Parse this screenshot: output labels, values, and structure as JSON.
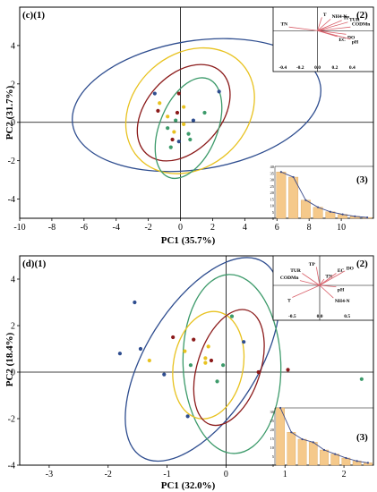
{
  "chart_data": [
    {
      "type": "scatter",
      "panel_label": "(c)(1)",
      "xlabel": "PC1 (35.7%)",
      "ylabel": "PC2 (31.7%)",
      "xlim": [
        -10,
        12
      ],
      "ylim": [
        -5,
        6
      ],
      "xticks": [
        "-10",
        "-8",
        "-6",
        "-4",
        "-2",
        "0",
        "2",
        "4",
        "6",
        "8",
        "10"
      ],
      "yticks": [
        "-4",
        "-2",
        "0",
        "2",
        "4"
      ],
      "colors": {
        "blue": "#2e4d8f",
        "yellow": "#e8c21f",
        "red": "#8b1a1a",
        "green": "#3c9a6a"
      },
      "ellipses": [
        {
          "color": "blue",
          "cx": 1.0,
          "cy": 0.9,
          "rx": 7.8,
          "ry": 3.35,
          "angle": -9
        },
        {
          "color": "yellow",
          "cx": 0.6,
          "cy": 0.6,
          "rx": 4.35,
          "ry": 2.95,
          "angle": -42
        },
        {
          "color": "red",
          "cx": 0.2,
          "cy": 0.5,
          "rx": 3.45,
          "ry": 1.95,
          "angle": -48
        },
        {
          "color": "green",
          "cx": 0.5,
          "cy": -0.3,
          "rx": 3.3,
          "ry": 1.5,
          "angle": -68
        }
      ],
      "points": [
        {
          "x": 2.4,
          "y": 1.6,
          "color": "blue"
        },
        {
          "x": -1.6,
          "y": 1.5,
          "color": "blue"
        },
        {
          "x": 0.8,
          "y": 0.1,
          "color": "blue"
        },
        {
          "x": -0.1,
          "y": -1.0,
          "color": "blue"
        },
        {
          "x": -1.3,
          "y": 1.0,
          "color": "yellow"
        },
        {
          "x": -0.8,
          "y": 0.3,
          "color": "yellow"
        },
        {
          "x": 0.2,
          "y": 0.8,
          "color": "yellow"
        },
        {
          "x": -0.4,
          "y": -0.5,
          "color": "yellow"
        },
        {
          "x": 0.2,
          "y": -0.1,
          "color": "yellow"
        },
        {
          "x": -0.1,
          "y": 1.5,
          "color": "red"
        },
        {
          "x": -1.4,
          "y": 0.6,
          "color": "red"
        },
        {
          "x": -0.2,
          "y": 0.5,
          "color": "red"
        },
        {
          "x": -0.5,
          "y": -0.9,
          "color": "red"
        },
        {
          "x": -0.3,
          "y": 0.1,
          "color": "green"
        },
        {
          "x": 0.5,
          "y": -0.6,
          "color": "green"
        },
        {
          "x": 0.6,
          "y": -0.9,
          "color": "green"
        },
        {
          "x": -0.6,
          "y": -1.3,
          "color": "green"
        },
        {
          "x": -0.8,
          "y": -0.3,
          "color": "green"
        },
        {
          "x": 1.5,
          "y": 0.5,
          "color": "green"
        }
      ],
      "inset_loadings": {
        "label": "(2)",
        "xticks": [
          "-0.4",
          "-0.2",
          "0.0",
          "0.2",
          "0.4"
        ],
        "xlim": [
          -0.45,
          0.5
        ],
        "ylim": [
          -0.5,
          0.3
        ],
        "vectors": [
          {
            "name": "TN",
            "x": -0.33,
            "y": 0.06
          },
          {
            "name": "T",
            "x": 0.05,
            "y": 0.22
          },
          {
            "name": "NH4-N",
            "x": 0.15,
            "y": 0.19
          },
          {
            "name": "TP",
            "x": 0.28,
            "y": 0.17
          },
          {
            "name": "TUR",
            "x": 0.35,
            "y": 0.14
          },
          {
            "name": "CODMn",
            "x": 0.38,
            "y": 0.06
          },
          {
            "name": "DO",
            "x": 0.33,
            "y": -0.06
          },
          {
            "name": "EC",
            "x": 0.23,
            "y": -0.1
          },
          {
            "name": "pH",
            "x": 0.38,
            "y": -0.14
          }
        ]
      },
      "inset_scree": {
        "label": "(3)",
        "yticks": [
          "0",
          "5",
          "10",
          "15",
          "20",
          "25",
          "30",
          "35",
          "40"
        ],
        "ylim": [
          0,
          40
        ],
        "values": [
          35.7,
          31.7,
          14,
          8.5,
          5,
          3,
          1.5,
          0.6
        ]
      }
    },
    {
      "type": "scatter",
      "panel_label": "(d)(1)",
      "xlabel": "PC1 (32.0%)",
      "ylabel": "PC2 (18.4%)",
      "xlim": [
        -3.5,
        2.5
      ],
      "ylim": [
        -4,
        5
      ],
      "xticks": [
        "-3",
        "-2",
        "-1",
        "0",
        "1",
        "2"
      ],
      "yticks": [
        "-4",
        "-2",
        "0",
        "2",
        "4"
      ],
      "colors": {
        "blue": "#2e4d8f",
        "yellow": "#e8c21f",
        "red": "#8b1a1a",
        "green": "#3c9a6a"
      },
      "ellipses": [
        {
          "color": "blue",
          "cx": -0.4,
          "cy": 0.55,
          "rx": 1.95,
          "ry": 2.4,
          "angle": -58
        },
        {
          "color": "green",
          "cx": 0.1,
          "cy": 0.35,
          "rx": 1.52,
          "ry": 2.1,
          "angle": 88
        },
        {
          "color": "yellow",
          "cx": -0.3,
          "cy": 0.3,
          "rx": 0.92,
          "ry": 1.5,
          "angle": -80
        },
        {
          "color": "red",
          "cx": 0.05,
          "cy": 0.2,
          "rx": 1.02,
          "ry": 1.35,
          "angle": -72
        }
      ],
      "points": [
        {
          "x": -1.55,
          "y": 3.0,
          "color": "blue"
        },
        {
          "x": -1.45,
          "y": 1.0,
          "color": "blue"
        },
        {
          "x": -1.8,
          "y": 0.8,
          "color": "blue"
        },
        {
          "x": -1.05,
          "y": -0.1,
          "color": "blue"
        },
        {
          "x": -0.65,
          "y": -1.9,
          "color": "blue"
        },
        {
          "x": 0.3,
          "y": 1.3,
          "color": "blue"
        },
        {
          "x": -1.3,
          "y": 0.5,
          "color": "yellow"
        },
        {
          "x": -0.7,
          "y": 0.9,
          "color": "yellow"
        },
        {
          "x": -0.3,
          "y": 1.1,
          "color": "yellow"
        },
        {
          "x": -0.35,
          "y": 0.6,
          "color": "yellow"
        },
        {
          "x": -0.35,
          "y": 0.4,
          "color": "yellow"
        },
        {
          "x": -0.9,
          "y": 1.5,
          "color": "red"
        },
        {
          "x": -0.55,
          "y": 1.4,
          "color": "red"
        },
        {
          "x": -0.25,
          "y": 0.5,
          "color": "red"
        },
        {
          "x": 1.05,
          "y": 0.1,
          "color": "red"
        },
        {
          "x": 0.55,
          "y": 0.0,
          "color": "red"
        },
        {
          "x": 0.1,
          "y": 2.4,
          "color": "green"
        },
        {
          "x": -0.6,
          "y": 0.3,
          "color": "green"
        },
        {
          "x": -0.05,
          "y": 0.3,
          "color": "green"
        },
        {
          "x": -0.15,
          "y": -0.4,
          "color": "green"
        },
        {
          "x": 2.3,
          "y": -0.3,
          "color": "green"
        }
      ],
      "inset_loadings": {
        "label": "(2)",
        "xticks": [
          "-0.5",
          "0.0",
          "0.5"
        ],
        "xlim": [
          -0.75,
          0.75
        ],
        "ylim": [
          -0.5,
          0.5
        ],
        "vectors": [
          {
            "name": "TUR",
            "x": -0.32,
            "y": 0.25
          },
          {
            "name": "TP",
            "x": -0.06,
            "y": 0.38
          },
          {
            "name": "CODMn",
            "x": -0.36,
            "y": 0.1
          },
          {
            "name": "TN",
            "x": 0.08,
            "y": 0.13
          },
          {
            "name": "EC",
            "x": 0.3,
            "y": 0.25
          },
          {
            "name": "DO",
            "x": 0.46,
            "y": 0.3
          },
          {
            "name": "pH",
            "x": 0.3,
            "y": -0.03
          },
          {
            "name": "T",
            "x": -0.5,
            "y": -0.25
          },
          {
            "name": "NH4-N",
            "x": 0.25,
            "y": -0.26
          }
        ]
      },
      "inset_scree": {
        "label": "(3)",
        "yticks": [
          "0",
          "5",
          "10",
          "15",
          "20",
          "25",
          "30"
        ],
        "ylim": [
          0,
          32
        ],
        "values": [
          32.0,
          18.4,
          14.5,
          12.8,
          8.5,
          6.2,
          4.0,
          2.3,
          1.3
        ]
      }
    }
  ]
}
